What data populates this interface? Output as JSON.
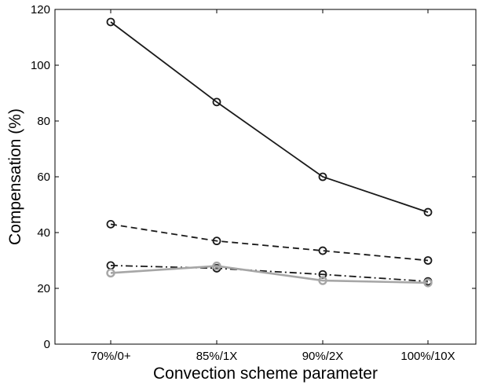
{
  "chart_data": {
    "type": "line",
    "title": "",
    "xlabel": "Convection scheme parameter",
    "ylabel": "Compensation (%)",
    "categories": [
      "70%/0+",
      "85%/1X",
      "90%/2X",
      "100%/10X"
    ],
    "ylim": [
      0,
      120
    ],
    "yticks": [
      0,
      20,
      40,
      60,
      80,
      100,
      120
    ],
    "grid": false,
    "series": [
      {
        "style": "solid",
        "color": "#1a1a1a",
        "values": [
          115.5,
          86.8,
          60.0,
          47.3
        ]
      },
      {
        "style": "dashed",
        "color": "#1a1a1a",
        "values": [
          43.0,
          37.0,
          33.5,
          30.0
        ]
      },
      {
        "style": "dash-dot",
        "color": "#1a1a1a",
        "values": [
          28.2,
          27.2,
          25.0,
          22.5
        ]
      },
      {
        "style": "solid",
        "color": "#a6a6a6",
        "values": [
          25.5,
          28.0,
          22.8,
          22.0
        ]
      }
    ]
  }
}
